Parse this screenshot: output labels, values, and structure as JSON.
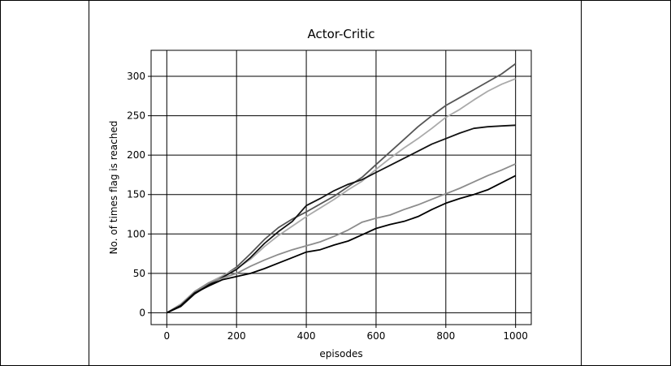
{
  "chart_data": {
    "type": "line",
    "title": "Actor-Critic",
    "xlabel": "episodes",
    "ylabel": "No. of times flag is reached",
    "xlim": [
      -45,
      1045
    ],
    "ylim": [
      -15,
      333
    ],
    "xticks": [
      0,
      200,
      400,
      600,
      800,
      1000
    ],
    "yticks": [
      0,
      50,
      100,
      150,
      200,
      250,
      300
    ],
    "grid": true,
    "legend": "none",
    "series": [
      {
        "name": "run-1",
        "color": "#555555",
        "x": [
          0,
          40,
          80,
          120,
          160,
          200,
          240,
          280,
          320,
          360,
          400,
          440,
          480,
          520,
          560,
          600,
          640,
          680,
          720,
          760,
          800,
          840,
          880,
          920,
          960,
          1000
        ],
        "y": [
          0,
          10,
          25,
          36,
          46,
          58,
          75,
          93,
          108,
          119,
          128,
          138,
          148,
          160,
          172,
          188,
          204,
          220,
          236,
          250,
          263,
          273,
          283,
          293,
          303,
          316
        ]
      },
      {
        "name": "run-2",
        "color": "#aaaaaa",
        "x": [
          0,
          40,
          80,
          120,
          160,
          200,
          240,
          280,
          320,
          360,
          400,
          440,
          480,
          520,
          560,
          600,
          640,
          680,
          720,
          760,
          800,
          840,
          880,
          920,
          960,
          1000
        ],
        "y": [
          0,
          11,
          27,
          38,
          47,
          56,
          68,
          84,
          98,
          110,
          122,
          133,
          144,
          156,
          167,
          182,
          196,
          209,
          221,
          234,
          248,
          258,
          270,
          281,
          290,
          297
        ]
      },
      {
        "name": "run-3",
        "color": "#111111",
        "x": [
          0,
          40,
          80,
          120,
          160,
          200,
          240,
          280,
          320,
          360,
          400,
          440,
          480,
          520,
          560,
          600,
          640,
          680,
          720,
          760,
          800,
          840,
          880,
          920,
          960,
          1000
        ],
        "y": [
          0,
          8,
          24,
          35,
          45,
          55,
          70,
          88,
          103,
          116,
          136,
          145,
          155,
          163,
          169,
          178,
          187,
          196,
          205,
          214,
          221,
          228,
          234,
          236,
          237,
          238
        ]
      },
      {
        "name": "run-4",
        "color": "#8c8c8c",
        "x": [
          0,
          40,
          80,
          120,
          160,
          200,
          240,
          280,
          320,
          360,
          400,
          440,
          480,
          520,
          560,
          600,
          640,
          680,
          720,
          760,
          800,
          840,
          880,
          920,
          960,
          1000
        ],
        "y": [
          0,
          10,
          27,
          38,
          44,
          50,
          59,
          67,
          74,
          80,
          85,
          90,
          97,
          105,
          115,
          120,
          124,
          131,
          137,
          144,
          151,
          158,
          166,
          174,
          181,
          189
        ]
      },
      {
        "name": "run-5",
        "color": "#000000",
        "x": [
          0,
          40,
          80,
          120,
          160,
          200,
          240,
          280,
          320,
          360,
          400,
          440,
          480,
          520,
          560,
          600,
          640,
          680,
          720,
          760,
          800,
          840,
          880,
          920,
          960,
          1000
        ],
        "y": [
          0,
          9,
          25,
          34,
          42,
          46,
          50,
          56,
          63,
          70,
          77,
          80,
          86,
          91,
          99,
          107,
          112,
          116,
          122,
          131,
          139,
          145,
          150,
          156,
          165,
          174
        ]
      }
    ]
  }
}
